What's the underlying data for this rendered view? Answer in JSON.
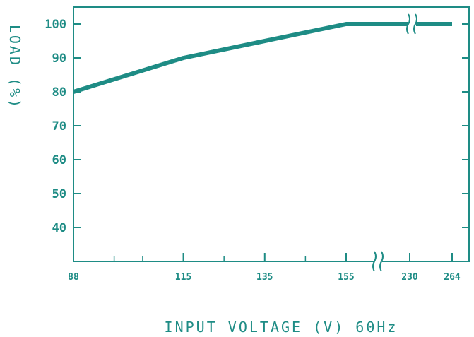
{
  "chart_data": {
    "type": "line",
    "xlabel": "INPUT VOLTAGE (V) 60Hz",
    "ylabel": "LOAD (%)",
    "x_ticks": [
      "88",
      "115",
      "135",
      "155",
      "230",
      "264"
    ],
    "y_ticks": [
      "40",
      "50",
      "60",
      "70",
      "80",
      "90",
      "100"
    ],
    "ylim": [
      30,
      105
    ],
    "x_axis_break": "between 155 and 230",
    "series": [
      {
        "points": [
          {
            "x": 88,
            "y": 80
          },
          {
            "x": 115,
            "y": 90
          },
          {
            "x": 155,
            "y": 100
          },
          {
            "x": 230,
            "y": 100
          },
          {
            "x": 264,
            "y": 100
          }
        ]
      }
    ],
    "grid": false,
    "colors": {
      "line": "#1e8c85",
      "axes": "#1e8c85",
      "text": "#1e8c85"
    }
  }
}
